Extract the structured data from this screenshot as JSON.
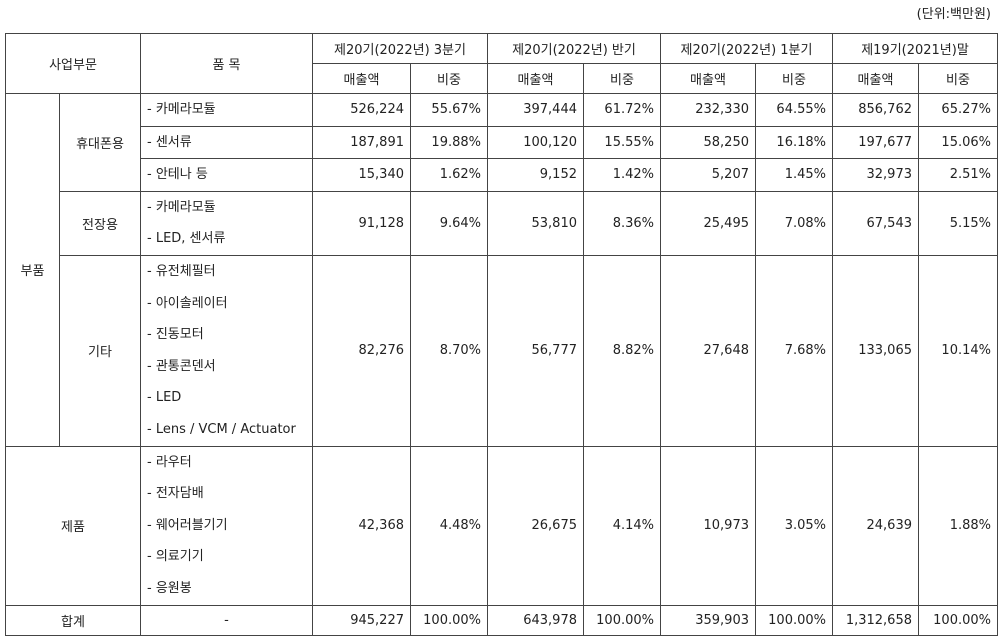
{
  "unit": "(단위:백만원)",
  "header": {
    "segment": "사업부문",
    "item": "품 목",
    "periods": [
      {
        "name": "제20기(2022년) 3분기",
        "sales": "매출액",
        "share": "비중"
      },
      {
        "name": "제20기(2022년) 반기",
        "sales": "매출액",
        "share": "비중"
      },
      {
        "name": "제20기(2022년) 1분기",
        "sales": "매출액",
        "share": "비중"
      },
      {
        "name": "제19기(2021년)말",
        "sales": "매출액",
        "share": "비중"
      }
    ]
  },
  "body": [
    {
      "segment": "부품",
      "subgroups": [
        {
          "name": "휴대폰용",
          "rows": [
            {
              "items": [
                "- 카메라모듈"
              ],
              "values": [
                "526,224",
                "55.67%",
                "397,444",
                "61.72%",
                "232,330",
                "64.55%",
                "856,762",
                "65.27%"
              ]
            },
            {
              "items": [
                "- 센서류"
              ],
              "values": [
                "187,891",
                "19.88%",
                "100,120",
                "15.55%",
                "58,250",
                "16.18%",
                "197,677",
                "15.06%"
              ]
            },
            {
              "items": [
                "- 안테나 등"
              ],
              "values": [
                "15,340",
                "1.62%",
                "9,152",
                "1.42%",
                "5,207",
                "1.45%",
                "32,973",
                "2.51%"
              ]
            }
          ]
        },
        {
          "name": "전장용",
          "rows": [
            {
              "items": [
                "- 카메라모듈",
                "- LED, 센서류"
              ],
              "values": [
                "91,128",
                "9.64%",
                "53,810",
                "8.36%",
                "25,495",
                "7.08%",
                "67,543",
                "5.15%"
              ]
            }
          ]
        },
        {
          "name": "기타",
          "rows": [
            {
              "items": [
                "- 유전체필터",
                "- 아이솔레이터",
                "- 진동모터",
                "- 관통콘덴서",
                "- LED",
                "- Lens / VCM / Actuator"
              ],
              "values": [
                "82,276",
                "8.70%",
                "56,777",
                "8.82%",
                "27,648",
                "7.68%",
                "133,065",
                "10.14%"
              ]
            }
          ]
        }
      ]
    },
    {
      "segment": "제품",
      "rows": [
        {
          "items": [
            "- 라우터",
            "- 전자담배",
            "- 웨어러블기기",
            "- 의료기기",
            "- 응원봉"
          ],
          "values": [
            "42,368",
            "4.48%",
            "26,675",
            "4.14%",
            "10,973",
            "3.05%",
            "24,639",
            "1.88%"
          ]
        }
      ]
    }
  ],
  "total": {
    "label": "합계",
    "item": "-",
    "values": [
      "945,227",
      "100.00%",
      "643,978",
      "100.00%",
      "359,903",
      "100.00%",
      "1,312,658",
      "100.00%"
    ]
  }
}
